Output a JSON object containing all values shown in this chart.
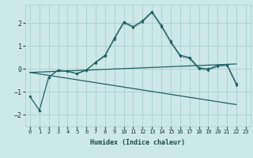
{
  "xlabel": "Humidex (Indice chaleur)",
  "background_color": "#cce8e8",
  "grid_color": "#aad0d0",
  "line_color": "#206060",
  "xlim": [
    -0.5,
    23.5
  ],
  "ylim": [
    -2.5,
    2.8
  ],
  "yticks": [
    -2,
    -1,
    0,
    1,
    2
  ],
  "xticks": [
    0,
    1,
    2,
    3,
    4,
    5,
    6,
    7,
    8,
    9,
    10,
    11,
    12,
    13,
    14,
    15,
    16,
    17,
    18,
    19,
    20,
    21,
    22,
    23
  ],
  "curve1_x": [
    0,
    1,
    2,
    3,
    4,
    5,
    6,
    7,
    8,
    9,
    10,
    11,
    12,
    13,
    14,
    15,
    16,
    17,
    18,
    19,
    20,
    21,
    22
  ],
  "curve1_y": [
    -1.2,
    -1.8,
    -0.35,
    -0.05,
    -0.1,
    -0.2,
    -0.05,
    0.3,
    0.6,
    1.35,
    2.05,
    1.85,
    2.1,
    2.5,
    1.9,
    1.2,
    0.6,
    0.5,
    0.05,
    0.0,
    0.15,
    0.2,
    -0.65
  ],
  "curve2_x": [
    2,
    3,
    4,
    5,
    6,
    7,
    8,
    9,
    10,
    11,
    12,
    13,
    14,
    15,
    16,
    17,
    18,
    19,
    20,
    21,
    22
  ],
  "curve2_y": [
    -0.35,
    -0.05,
    -0.1,
    -0.2,
    -0.05,
    0.27,
    0.55,
    1.3,
    2.0,
    1.8,
    2.05,
    2.45,
    1.85,
    1.15,
    0.55,
    0.45,
    0.0,
    -0.05,
    0.1,
    0.15,
    -0.7
  ],
  "trend1_x": [
    0,
    22
  ],
  "trend1_y": [
    -0.15,
    -1.55
  ],
  "trend2_x": [
    0,
    22
  ],
  "trend2_y": [
    -0.15,
    0.22
  ]
}
